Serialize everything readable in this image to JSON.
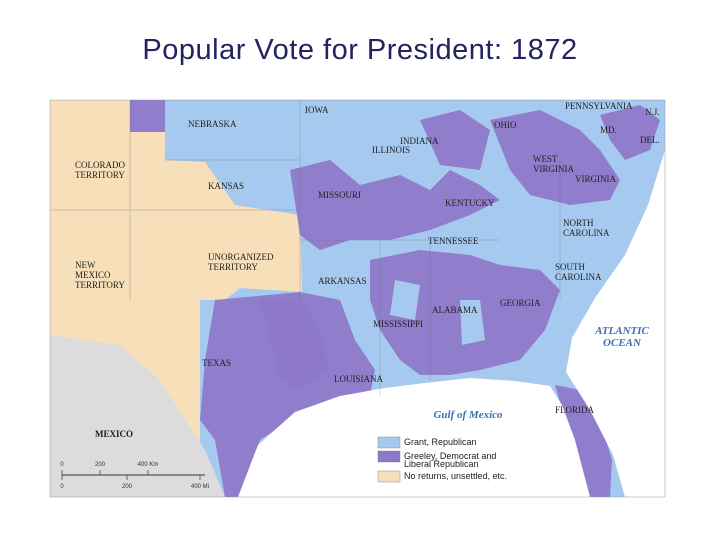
{
  "title": "Popular Vote for President:  1872",
  "map": {
    "labels": [
      {
        "lines": [
          "NEBRASKA"
        ]
      },
      {
        "lines": [
          "IOWA"
        ]
      },
      {
        "lines": [
          "PENNSYLVANIA"
        ]
      },
      {
        "lines": [
          "N.J."
        ]
      },
      {
        "lines": [
          "OHIO"
        ]
      },
      {
        "lines": [
          "MD."
        ]
      },
      {
        "lines": [
          "DEL."
        ]
      },
      {
        "lines": [
          "INDIANA"
        ]
      },
      {
        "lines": [
          "ILLINOIS"
        ]
      },
      {
        "lines": [
          "COLORADO",
          "TERRITORY"
        ]
      },
      {
        "lines": [
          "KANSAS"
        ]
      },
      {
        "lines": [
          "MISSOURI"
        ]
      },
      {
        "lines": [
          "WEST",
          "VIRGINIA"
        ]
      },
      {
        "lines": [
          "VIRGINIA"
        ]
      },
      {
        "lines": [
          "KENTUCKY"
        ]
      },
      {
        "lines": [
          "NORTH",
          "CAROLINA"
        ]
      },
      {
        "lines": [
          "TENNESSEE"
        ]
      },
      {
        "lines": [
          "UNORGANIZED",
          "TERRITORY"
        ]
      },
      {
        "lines": [
          "NEW",
          "MEXICO",
          "TERRITORY"
        ]
      },
      {
        "lines": [
          "ARKANSAS"
        ]
      },
      {
        "lines": [
          "SOUTH",
          "CAROLINA"
        ]
      },
      {
        "lines": [
          "GEORGIA"
        ]
      },
      {
        "lines": [
          "ALABAMA"
        ]
      },
      {
        "lines": [
          "MISSISSIPPI"
        ]
      },
      {
        "lines": [
          "TEXAS"
        ]
      },
      {
        "lines": [
          "LOUISIANA"
        ]
      },
      {
        "lines": [
          "FLORIDA"
        ]
      },
      {
        "lines": [
          "MEXICO"
        ]
      }
    ],
    "water": [
      {
        "lines": [
          "ATLANTIC",
          "OCEAN"
        ]
      },
      {
        "lines": [
          "Gulf of Mexico"
        ]
      }
    ]
  },
  "legend": {
    "items": [
      {
        "lines": [
          "Grant, Republican"
        ],
        "color": "#a6caef"
      },
      {
        "lines": [
          "Greeley, Democrat and",
          "Liberal Republican"
        ],
        "color": "#8e78c8"
      },
      {
        "lines": [
          "No returns, unsettled, etc."
        ],
        "color": "#f6dfb9"
      }
    ]
  },
  "scale": {
    "km": [
      "0",
      "200",
      "400 Km"
    ],
    "mi": [
      "0",
      "200",
      "400 Mi"
    ]
  }
}
